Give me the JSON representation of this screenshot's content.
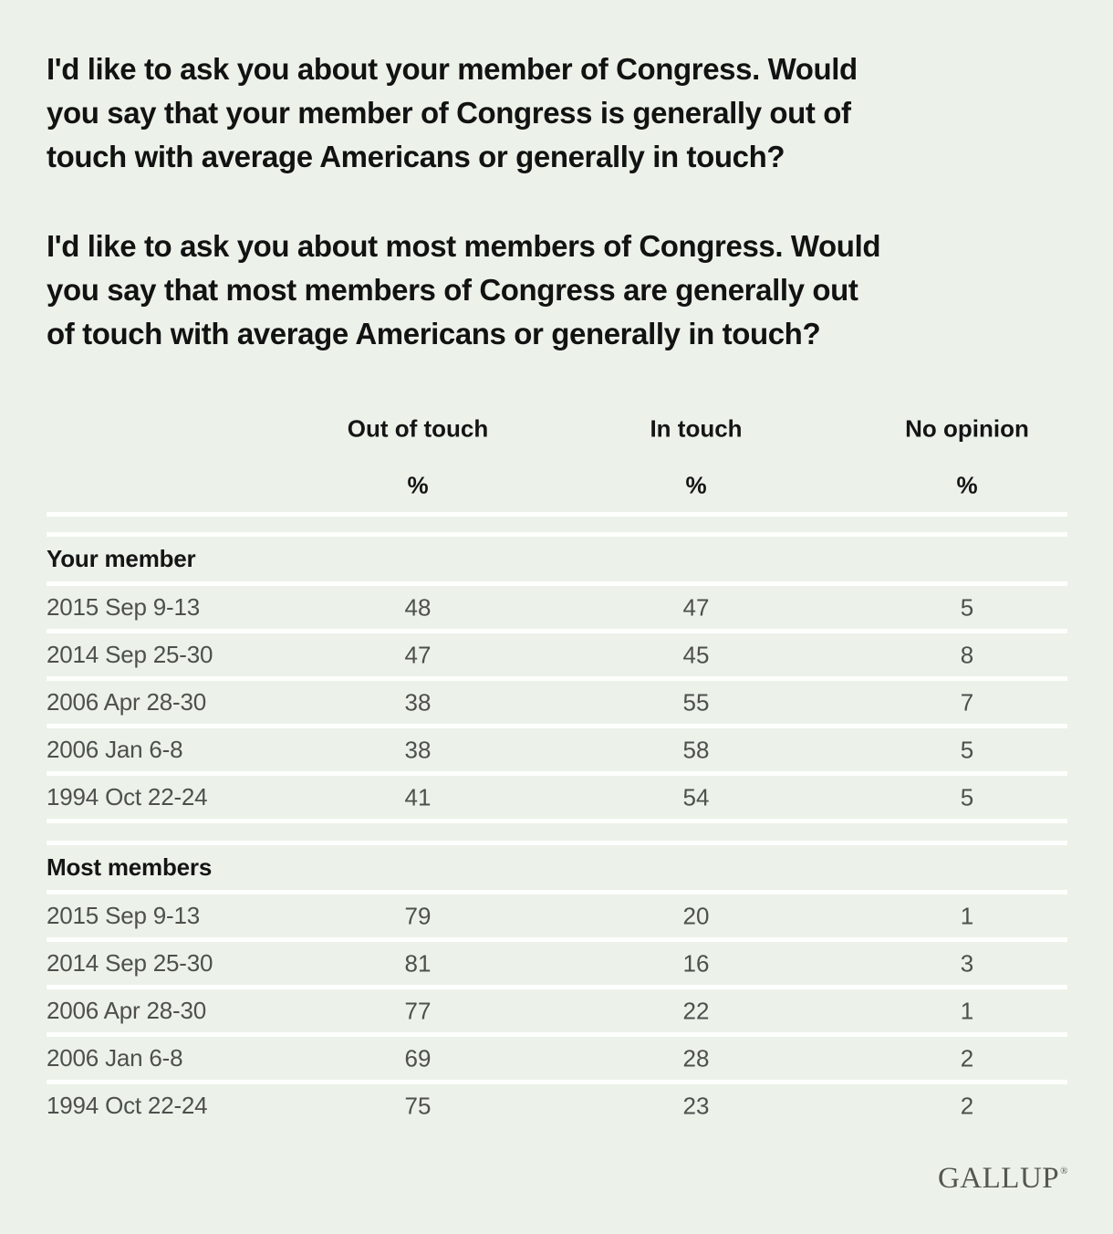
{
  "chart_data": {
    "type": "table",
    "title_questions": [
      {
        "lines": [
          "I'd like to ask you about your member of Congress. Would",
          "you say that your member of Congress is generally out of",
          "touch with average Americans or generally in touch?"
        ]
      },
      {
        "lines": [
          "I'd like to ask you about most members of Congress. Would",
          "you say that most members of Congress are generally out",
          "of touch with average Americans or generally in touch?"
        ]
      }
    ],
    "columns": [
      "Out of touch",
      "In touch",
      "No opinion"
    ],
    "unit_labels": [
      "%",
      "%",
      "%"
    ],
    "sections": [
      {
        "label": "Your member",
        "rows": [
          {
            "date": "2015 Sep 9-13",
            "values": [
              48,
              47,
              5
            ]
          },
          {
            "date": "2014 Sep 25-30",
            "values": [
              47,
              45,
              8
            ]
          },
          {
            "date": "2006 Apr 28-30",
            "values": [
              38,
              55,
              7
            ]
          },
          {
            "date": "2006 Jan 6-8",
            "values": [
              38,
              58,
              5
            ]
          },
          {
            "date": "1994 Oct 22-24",
            "values": [
              41,
              54,
              5
            ]
          }
        ]
      },
      {
        "label": "Most members",
        "rows": [
          {
            "date": "2015 Sep 9-13",
            "values": [
              79,
              20,
              1
            ]
          },
          {
            "date": "2014 Sep 25-30",
            "values": [
              81,
              16,
              3
            ]
          },
          {
            "date": "2006 Apr 28-30",
            "values": [
              77,
              22,
              1
            ]
          },
          {
            "date": "2006 Jan 6-8",
            "values": [
              69,
              28,
              2
            ]
          },
          {
            "date": "1994 Oct 22-24",
            "values": [
              75,
              23,
              2
            ]
          }
        ]
      }
    ],
    "layout_hints": {
      "row_dividers": true,
      "double_divider_between_sections": true
    }
  },
  "branding": {
    "logo_text": "GALLUP",
    "registered_mark": "®"
  },
  "colors": {
    "background": "#ecf2e9",
    "divider": "#fdfffd",
    "heading_text": "#121212",
    "table_header_text": "#151515",
    "row_text": "#4d504d",
    "logo_text": "#54574f"
  }
}
